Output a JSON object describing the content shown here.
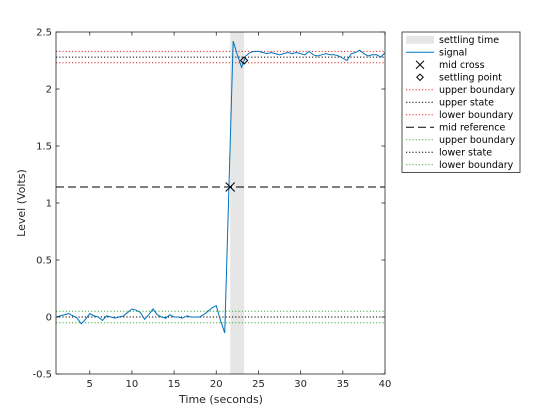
{
  "chart_data": {
    "type": "line",
    "title": "",
    "xlabel": "Time (seconds)",
    "ylabel": "Level (Volts)",
    "xlim": [
      1,
      40
    ],
    "ylim": [
      -0.5,
      2.5
    ],
    "xticks": [
      5,
      10,
      15,
      20,
      25,
      30,
      35,
      40
    ],
    "yticks": [
      -0.5,
      0,
      0.5,
      1,
      1.5,
      2,
      2.5
    ],
    "xtick_labels": [
      "5",
      "10",
      "15",
      "20",
      "25",
      "30",
      "35",
      "40"
    ],
    "ytick_labels": [
      "-0.5",
      "0",
      "0.5",
      "1",
      "1.5",
      "2",
      "2.5"
    ],
    "grid": false,
    "legend_position": "outside-top-right",
    "colors": {
      "signal": "#0072bd",
      "settling_area": "#e6e6e6",
      "upper_state_boundary": "#e8282b",
      "lower_state_boundary": "#3cb043",
      "state": "#000000",
      "mid_reference": "#000000",
      "marker": "#000000"
    },
    "settling_time": {
      "x_start": 21.65,
      "x_end": 23.3
    },
    "mid_cross": {
      "x": 21.65,
      "y": 1.14
    },
    "settling_point": {
      "x": 23.3,
      "y": 2.25
    },
    "reference_levels": {
      "upper_state": 2.28,
      "upper_state_upper_boundary": 2.33,
      "upper_state_lower_boundary": 2.23,
      "mid_reference": 1.14,
      "lower_state": 0.0,
      "lower_state_upper_boundary": 0.05,
      "lower_state_lower_boundary": -0.05
    },
    "series": [
      {
        "name": "signal",
        "x": [
          1,
          1.5,
          2,
          2.5,
          3,
          3.5,
          4,
          4.5,
          5,
          5.5,
          6,
          6.5,
          7,
          7.5,
          8,
          8.5,
          9,
          9.5,
          10,
          10.5,
          11,
          11.5,
          12,
          12.5,
          13,
          13.5,
          14,
          14.5,
          15,
          15.5,
          16,
          16.5,
          17,
          17.5,
          18,
          18.5,
          19,
          19.5,
          20,
          20.5,
          21,
          21.5,
          22,
          22.5,
          23,
          23.5,
          24,
          24.5,
          25,
          25.5,
          26,
          26.5,
          27,
          27.5,
          28,
          28.5,
          29,
          29.5,
          30,
          30.5,
          31,
          31.5,
          32,
          32.5,
          33,
          33.5,
          34,
          34.5,
          35,
          35.5,
          36,
          36.5,
          37,
          37.5,
          38,
          38.5,
          39,
          39.5,
          40
        ],
        "y": [
          0.0,
          0.01,
          0.02,
          0.03,
          0.01,
          -0.01,
          -0.06,
          -0.02,
          0.03,
          0.01,
          0.0,
          -0.03,
          0.01,
          0.0,
          -0.01,
          0.0,
          0.01,
          0.04,
          0.07,
          0.06,
          0.04,
          -0.02,
          0.02,
          0.07,
          0.02,
          0.0,
          -0.01,
          0.02,
          0.0,
          0.0,
          -0.01,
          0.01,
          0.0,
          0.0,
          0.0,
          0.02,
          0.05,
          0.08,
          0.1,
          -0.03,
          -0.14,
          1.14,
          2.42,
          2.3,
          2.19,
          2.29,
          2.32,
          2.33,
          2.33,
          2.32,
          2.31,
          2.32,
          2.31,
          2.3,
          2.31,
          2.32,
          2.31,
          2.32,
          2.31,
          2.3,
          2.33,
          2.3,
          2.29,
          2.3,
          2.31,
          2.3,
          2.3,
          2.29,
          2.27,
          2.25,
          2.31,
          2.32,
          2.34,
          2.31,
          2.29,
          2.3,
          2.3,
          2.28,
          2.32
        ]
      }
    ],
    "legend": [
      {
        "key": "settling_time",
        "label": "settling time",
        "kind": "patch",
        "color": "#e6e6e6"
      },
      {
        "key": "signal",
        "label": "signal",
        "kind": "line",
        "color": "#0072bd",
        "dash": ""
      },
      {
        "key": "mid_cross",
        "label": "mid cross",
        "kind": "marker-x",
        "color": "#000000"
      },
      {
        "key": "settling_point",
        "label": "settling point",
        "kind": "marker-diamond",
        "color": "#000000"
      },
      {
        "key": "upper_state_upper_boundary",
        "label": "upper boundary",
        "kind": "line",
        "color": "#e8282b",
        "dash": "1.2,2"
      },
      {
        "key": "upper_state",
        "label": "upper state",
        "kind": "line",
        "color": "#000000",
        "dash": "1.2,2"
      },
      {
        "key": "upper_state_lower_boundary",
        "label": "lower boundary",
        "kind": "line",
        "color": "#e8282b",
        "dash": "1.2,2"
      },
      {
        "key": "mid_reference",
        "label": "mid reference",
        "kind": "line",
        "color": "#000000",
        "dash": "8,4"
      },
      {
        "key": "lower_state_upper_boundary",
        "label": "upper boundary",
        "kind": "line",
        "color": "#3cb043",
        "dash": "1.2,2"
      },
      {
        "key": "lower_state",
        "label": "lower state",
        "kind": "line",
        "color": "#000000",
        "dash": "1.2,2"
      },
      {
        "key": "lower_state_lower_boundary",
        "label": "lower boundary",
        "kind": "line",
        "color": "#3cb043",
        "dash": "1.2,2"
      }
    ]
  }
}
